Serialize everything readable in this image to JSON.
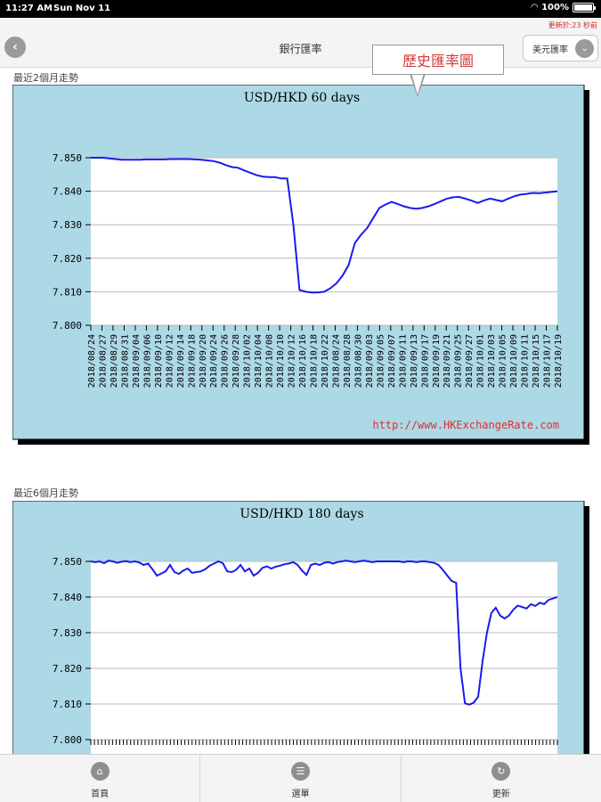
{
  "status_bar": {
    "time": "11:27 AM",
    "date": "Sun Nov 11",
    "battery": "100%"
  },
  "header": {
    "title": "銀行匯率",
    "currency_button": "美元匯率",
    "update_notice": "更新於:23 秒前"
  },
  "callout_text": "歷史匯率圖",
  "sections": [
    {
      "label": "最近2個月走勢"
    },
    {
      "label": "最近6個月走勢"
    }
  ],
  "tab_bar": {
    "items": [
      {
        "label": "首頁",
        "icon": "home-icon"
      },
      {
        "label": "選單",
        "icon": "menu-icon"
      },
      {
        "label": "更新",
        "icon": "refresh-icon"
      }
    ]
  },
  "colors": {
    "chart_bg": "#add8e6",
    "line": "#1a1aee",
    "url": "#e03030"
  },
  "chart_data": [
    {
      "type": "line",
      "title": "USD/HKD   60 days",
      "source": "http://www.HKExchangeRate.com",
      "ylim": [
        7.8,
        7.85
      ],
      "y_ticks": [
        "7.850",
        "7.840",
        "7.830",
        "7.820",
        "7.810",
        "7.800"
      ],
      "x_tick_labels": [
        "2018/08/24",
        "2018/08/27",
        "2018/08/29",
        "2018/08/31",
        "2018/09/04",
        "2018/09/06",
        "2018/09/10",
        "2018/09/12",
        "2018/09/14",
        "2018/09/18",
        "2018/09/20",
        "2018/09/24",
        "2018/09/26",
        "2018/09/28",
        "2018/10/02",
        "2018/10/04",
        "2018/10/08",
        "2018/10/10",
        "2018/10/12",
        "2018/10/16",
        "2018/10/18",
        "2018/10/22",
        "2018/08/24",
        "2018/08/28",
        "2018/08/30",
        "2018/09/03",
        "2018/09/05",
        "2018/09/07",
        "2018/09/11",
        "2018/09/13",
        "2018/09/17",
        "2018/09/19",
        "2018/09/21",
        "2018/09/25",
        "2018/09/27",
        "2018/10/01",
        "2018/10/03",
        "2018/10/05",
        "2018/10/09",
        "2018/10/11",
        "2018/10/15",
        "2018/10/17",
        "2018/10/19"
      ],
      "values": [
        7.85,
        7.85,
        7.85,
        7.8498,
        7.8496,
        7.8494,
        7.8494,
        7.8494,
        7.8494,
        7.8495,
        7.8495,
        7.8495,
        7.8495,
        7.8496,
        7.8496,
        7.8496,
        7.8496,
        7.8495,
        7.8494,
        7.8492,
        7.849,
        7.8485,
        7.8478,
        7.8472,
        7.847,
        7.8462,
        7.8455,
        7.8448,
        7.8444,
        7.8442,
        7.8442,
        7.8438,
        7.8438,
        7.83,
        7.8105,
        7.81,
        7.8098,
        7.8098,
        7.81,
        7.811,
        7.8125,
        7.8148,
        7.818,
        7.8245,
        7.827,
        7.829,
        7.832,
        7.835,
        7.836,
        7.8368,
        7.8362,
        7.8355,
        7.835,
        7.8348,
        7.835,
        7.8355,
        7.8362,
        7.837,
        7.8378,
        7.8382,
        7.8383,
        7.8378,
        7.8372,
        7.8365,
        7.8372,
        7.8378,
        7.8374,
        7.837,
        7.8378,
        7.8385,
        7.839,
        7.8392,
        7.8395,
        7.8394,
        7.8396,
        7.8398,
        7.84
      ]
    },
    {
      "type": "line",
      "title": "USD/HKD   180 days",
      "ylim": [
        7.8,
        7.85
      ],
      "y_ticks": [
        "7.850",
        "7.840",
        "7.830",
        "7.820",
        "7.810",
        "7.800"
      ],
      "values": [
        7.85,
        7.8498,
        7.85,
        7.8495,
        7.8502,
        7.85,
        7.8496,
        7.8499,
        7.8501,
        7.8498,
        7.85,
        7.8497,
        7.849,
        7.8494,
        7.8478,
        7.846,
        7.8466,
        7.8472,
        7.849,
        7.847,
        7.8465,
        7.8474,
        7.848,
        7.8468,
        7.847,
        7.8472,
        7.8478,
        7.8488,
        7.8494,
        7.85,
        7.8495,
        7.8472,
        7.847,
        7.8476,
        7.849,
        7.8472,
        7.848,
        7.846,
        7.8468,
        7.8482,
        7.8486,
        7.848,
        7.8485,
        7.8488,
        7.8492,
        7.8494,
        7.8498,
        7.849,
        7.8474,
        7.8462,
        7.849,
        7.8494,
        7.849,
        7.8496,
        7.8498,
        7.8494,
        7.8498,
        7.85,
        7.8502,
        7.85,
        7.8498,
        7.85,
        7.8502,
        7.85,
        7.8498,
        7.85,
        7.85,
        7.85,
        7.85,
        7.85,
        7.85,
        7.8498,
        7.85,
        7.85,
        7.8498,
        7.85,
        7.85,
        7.8498,
        7.8496,
        7.849,
        7.8476,
        7.846,
        7.8445,
        7.844,
        7.82,
        7.8102,
        7.8098,
        7.8104,
        7.812,
        7.822,
        7.83,
        7.8355,
        7.837,
        7.8348,
        7.834,
        7.8348,
        7.8365,
        7.8376,
        7.8372,
        7.8368,
        7.838,
        7.8375,
        7.8384,
        7.838,
        7.8392,
        7.8396,
        7.84
      ]
    }
  ]
}
